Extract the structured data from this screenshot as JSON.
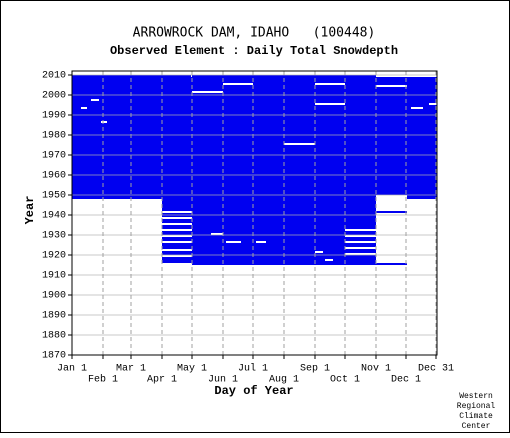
{
  "chart_data": {
    "type": "raster",
    "title": "ARROWROCK DAM, IDAHO   (100448)",
    "subtitle": "Observed Element : Daily Total Snowdepth",
    "x_label": "Day of Year",
    "y_label": "Year",
    "credit": [
      "Western",
      "Regional",
      "Climate",
      "Center"
    ],
    "color": "#0000f0",
    "gap_color": "#ffffff",
    "xlim": [
      1,
      366
    ],
    "ylim": [
      1870,
      2012
    ],
    "xticks": [
      {
        "value": 1,
        "label": "Jan 1"
      },
      {
        "value": 32,
        "label": "Feb 1"
      },
      {
        "value": 60,
        "label": "Mar 1"
      },
      {
        "value": 91,
        "label": "Apr 1"
      },
      {
        "value": 121,
        "label": "May 1"
      },
      {
        "value": 152,
        "label": "Jun 1"
      },
      {
        "value": 182,
        "label": "Jul 1"
      },
      {
        "value": 213,
        "label": "Aug 1"
      },
      {
        "value": 244,
        "label": "Sep 1"
      },
      {
        "value": 274,
        "label": "Oct 1"
      },
      {
        "value": 305,
        "label": "Nov 1"
      },
      {
        "value": 335,
        "label": "Dec 1"
      },
      {
        "value": 365,
        "label": "Dec 31"
      }
    ],
    "yticks": [
      1870,
      1880,
      1890,
      1900,
      1910,
      1920,
      1930,
      1940,
      1950,
      1960,
      1970,
      1980,
      1990,
      2000,
      2010
    ],
    "grid": true,
    "blocks": [
      {
        "days": [
          1,
          366
        ],
        "years": [
          1948,
          2009
        ]
      },
      {
        "days": [
          1,
          120
        ],
        "years": [
          2009,
          2010
        ]
      },
      {
        "days": [
          121,
          305
        ],
        "years": [
          2009,
          2010
        ]
      },
      {
        "days": [
          91,
          121
        ],
        "years": [
          1916,
          1948
        ]
      },
      {
        "days": [
          121,
          305
        ],
        "years": [
          1915,
          1948
        ]
      },
      {
        "days": [
          305,
          336
        ],
        "years": [
          1941,
          1942
        ]
      },
      {
        "days": [
          305,
          336
        ],
        "years": [
          1915,
          1916
        ]
      }
    ],
    "gaps": [
      {
        "days": [
          305,
          336
        ],
        "years": [
          1948,
          1950
        ]
      },
      {
        "days": [
          91,
          121
        ],
        "years": [
          1941,
          1942
        ]
      },
      {
        "days": [
          91,
          121
        ],
        "years": [
          1938,
          1939
        ]
      },
      {
        "days": [
          91,
          121
        ],
        "years": [
          1935,
          1936
        ]
      },
      {
        "days": [
          91,
          121
        ],
        "years": [
          1932,
          1933
        ]
      },
      {
        "days": [
          91,
          121
        ],
        "years": [
          1929,
          1930
        ]
      },
      {
        "days": [
          91,
          121
        ],
        "years": [
          1926,
          1927
        ]
      },
      {
        "days": [
          91,
          121
        ],
        "years": [
          1922,
          1923
        ]
      },
      {
        "days": [
          91,
          121
        ],
        "years": [
          1919,
          1920
        ]
      },
      {
        "days": [
          121,
          152
        ],
        "years": [
          2001,
          2002
        ]
      },
      {
        "days": [
          152,
          182
        ],
        "years": [
          2005,
          2006
        ]
      },
      {
        "days": [
          213,
          244
        ],
        "years": [
          1975,
          1976
        ]
      },
      {
        "days": [
          244,
          274
        ],
        "years": [
          1995,
          1996
        ]
      },
      {
        "days": [
          244,
          274
        ],
        "years": [
          2005,
          2006
        ]
      },
      {
        "days": [
          305,
          336
        ],
        "years": [
          2004,
          2005
        ]
      },
      {
        "days": [
          155,
          170
        ],
        "years": [
          1926,
          1927
        ]
      },
      {
        "days": [
          185,
          195
        ],
        "years": [
          1926,
          1927
        ]
      },
      {
        "days": [
          140,
          152
        ],
        "years": [
          1930,
          1931
        ]
      },
      {
        "days": [
          244,
          252
        ],
        "years": [
          1921,
          1922
        ]
      },
      {
        "days": [
          254,
          262
        ],
        "years": [
          1917,
          1918
        ]
      },
      {
        "days": [
          274,
          305
        ],
        "years": [
          1932,
          1933
        ]
      },
      {
        "days": [
          274,
          305
        ],
        "years": [
          1929,
          1930
        ]
      },
      {
        "days": [
          274,
          305
        ],
        "years": [
          1926,
          1927
        ]
      },
      {
        "days": [
          274,
          305
        ],
        "years": [
          1923,
          1924
        ]
      },
      {
        "days": [
          274,
          305
        ],
        "years": [
          1920,
          1921
        ]
      },
      {
        "days": [
          20,
          28
        ],
        "years": [
          1997,
          1998
        ]
      },
      {
        "days": [
          10,
          16
        ],
        "years": [
          1993,
          1994
        ]
      },
      {
        "days": [
          30,
          36
        ],
        "years": [
          1986,
          1987
        ]
      },
      {
        "days": [
          340,
          352
        ],
        "years": [
          1993,
          1994
        ]
      },
      {
        "days": [
          358,
          366
        ],
        "years": [
          1995,
          1996
        ]
      }
    ]
  }
}
